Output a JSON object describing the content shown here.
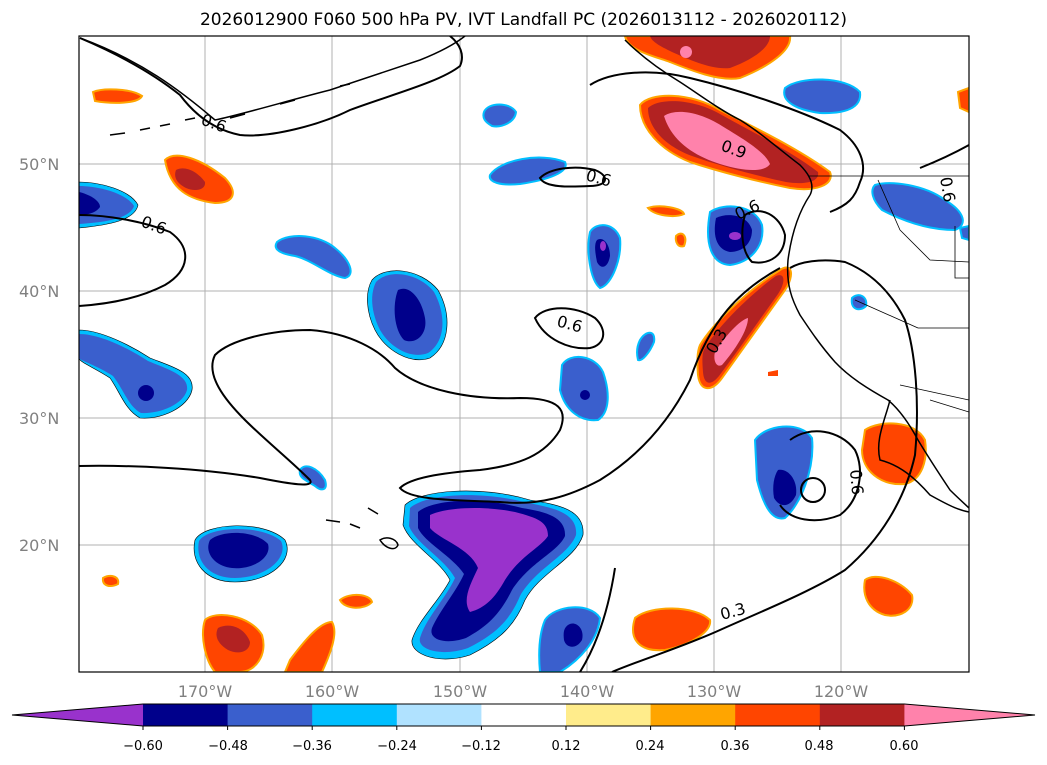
{
  "title": "2026012900 F060 500 hPa PV, IVT Landfall PC (2026013112 - 2026020112)",
  "lat_labels": [
    "50°N",
    "40°N",
    "30°N",
    "20°N"
  ],
  "lon_labels": [
    "170°W",
    "160°W",
    "150°W",
    "140°W",
    "130°W",
    "120°W"
  ],
  "contour_labels": [
    "0.6",
    "0.6",
    "0.6",
    "0.6",
    "0.6",
    "0.9",
    "0.6",
    "0.3",
    "0.6",
    "0.3"
  ],
  "colorbar": {
    "ticks": [
      "−0.60",
      "−0.48",
      "−0.36",
      "−0.24",
      "−0.12",
      "0.12",
      "0.24",
      "0.36",
      "0.48",
      "0.60"
    ],
    "colors": [
      "#9932cc",
      "#00008b",
      "#3a5fcd",
      "#00bfff",
      "#b0e2ff",
      "#ffffff",
      "#ffec8b",
      "#ffa500",
      "#ff4500",
      "#b22222",
      "#ff82ab"
    ]
  }
}
